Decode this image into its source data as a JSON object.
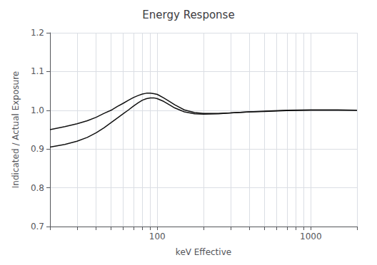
{
  "chart_data": {
    "type": "line",
    "title": "Energy Response",
    "xlabel": "keV Effective",
    "ylabel": "Indicated / Actual Exposure",
    "log": "x",
    "grid": true,
    "xlim": [
      20,
      2000
    ],
    "ylim": [
      0.7,
      1.2
    ],
    "xticks": [
      {
        "value": 20,
        "label": ""
      },
      {
        "value": 30,
        "label": ""
      },
      {
        "value": 40,
        "label": ""
      },
      {
        "value": 50,
        "label": ""
      },
      {
        "value": 60,
        "label": ""
      },
      {
        "value": 70,
        "label": ""
      },
      {
        "value": 80,
        "label": ""
      },
      {
        "value": 90,
        "label": ""
      },
      100,
      {
        "value": 200,
        "label": ""
      },
      {
        "value": 300,
        "label": ""
      },
      {
        "value": 400,
        "label": ""
      },
      {
        "value": 500,
        "label": ""
      },
      {
        "value": 600,
        "label": ""
      },
      {
        "value": 700,
        "label": ""
      },
      {
        "value": 800,
        "label": ""
      },
      {
        "value": 900,
        "label": ""
      },
      1000,
      {
        "value": 2000,
        "label": ""
      }
    ],
    "yticks": [
      0.7,
      0.8,
      0.9,
      {
        "value": 1.0,
        "label": "1.0"
      },
      1.1,
      1.2
    ],
    "x": [
      20,
      25,
      30,
      35,
      40,
      45,
      50,
      55,
      60,
      65,
      70,
      75,
      80,
      85,
      90,
      95,
      100,
      110,
      120,
      130,
      150,
      175,
      200,
      250,
      300,
      400,
      500,
      700,
      1000,
      1500,
      2000
    ],
    "series": [
      {
        "color": "#111111",
        "values": [
          0.95,
          0.958,
          0.965,
          0.973,
          0.982,
          0.992,
          1.0,
          1.01,
          1.018,
          1.026,
          1.033,
          1.038,
          1.042,
          1.044,
          1.044,
          1.043,
          1.041,
          1.032,
          1.023,
          1.014,
          1.001,
          0.994,
          0.992,
          0.992,
          0.993,
          0.996,
          0.997,
          0.999,
          1.0,
          1.0,
          1.0
        ]
      },
      {
        "color": "#111111",
        "values": [
          0.905,
          0.912,
          0.92,
          0.93,
          0.942,
          0.955,
          0.968,
          0.98,
          0.991,
          1.001,
          1.011,
          1.019,
          1.026,
          1.03,
          1.032,
          1.032,
          1.03,
          1.023,
          1.014,
          1.006,
          0.996,
          0.991,
          0.99,
          0.991,
          0.993,
          0.996,
          0.998,
          1.0,
          1.001,
          1.001,
          1.0
        ]
      }
    ]
  }
}
